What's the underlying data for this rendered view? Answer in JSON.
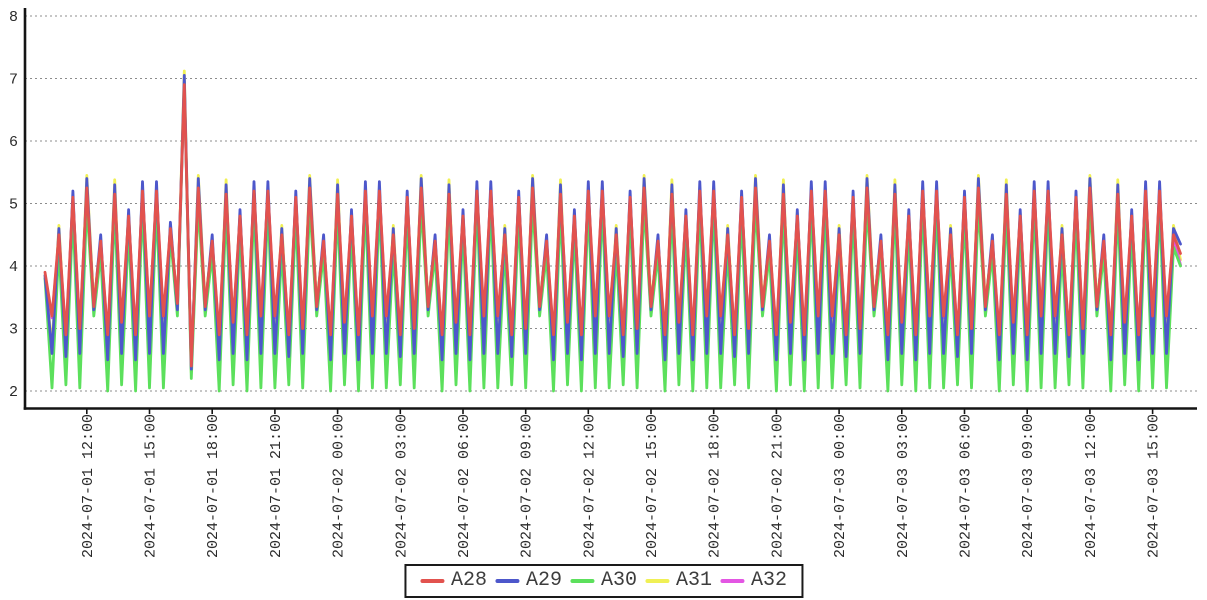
{
  "chart_data": {
    "type": "line",
    "title": "",
    "grid": {
      "horizontal": true,
      "style": "dashed",
      "color": "#8c8c8c"
    },
    "legend": {
      "position": "bottom-center",
      "border_color": "#1a1a1a",
      "entries": [
        "A28",
        "A29",
        "A30",
        "A31",
        "A32"
      ]
    },
    "y_axis": {
      "ticks": [
        8,
        7,
        6,
        5,
        4,
        3,
        2
      ],
      "ylim": [
        2,
        8
      ]
    },
    "x_axis": {
      "label_rotation_deg": 90,
      "tick_labels": [
        "2024-07-01 12:00",
        "2024-07-01 15:00",
        "2024-07-01 18:00",
        "2024-07-01 21:00",
        "2024-07-02 00:00",
        "2024-07-02 03:00",
        "2024-07-02 06:00",
        "2024-07-02 09:00",
        "2024-07-02 12:00",
        "2024-07-02 15:00",
        "2024-07-02 18:00",
        "2024-07-02 21:00",
        "2024-07-03 00:00",
        "2024-07-03 03:00",
        "2024-07-03 06:00",
        "2024-07-03 09:00",
        "2024-07-03 12:00",
        "2024-07-03 15:00"
      ],
      "tick_indices": [
        6,
        15,
        24,
        33,
        42,
        51,
        60,
        69,
        78,
        87,
        96,
        105,
        114,
        123,
        132,
        141,
        150,
        159
      ]
    },
    "draw_order": [
      "A31",
      "A32",
      "A30",
      "A29",
      "A28"
    ],
    "series": [
      {
        "name": "A28",
        "color": "#e2524e",
        "values": [
          3.9,
          3.2,
          4.5,
          2.9,
          5.1,
          3.0,
          5.25,
          3.35,
          4.4,
          2.9,
          5.15,
          3.1,
          4.8,
          2.9,
          5.2,
          3.2,
          5.2,
          3.2,
          4.6,
          3.4,
          6.9,
          2.4,
          5.25,
          3.35,
          4.4,
          2.9,
          5.15,
          3.1,
          4.8,
          2.9,
          5.2,
          3.2,
          5.2,
          3.2,
          4.5,
          2.9,
          5.1,
          3.0,
          5.25,
          3.35,
          4.4,
          2.9,
          5.15,
          3.1,
          4.8,
          2.9,
          5.2,
          3.2,
          5.2,
          3.2,
          4.5,
          2.9,
          5.1,
          3.0,
          5.25,
          3.35,
          4.4,
          2.9,
          5.15,
          3.1,
          4.8,
          2.9,
          5.2,
          3.2,
          5.2,
          3.2,
          4.5,
          2.9,
          5.1,
          3.0,
          5.25,
          3.35,
          4.4,
          2.9,
          5.15,
          3.1,
          4.8,
          2.9,
          5.2,
          3.2,
          5.2,
          3.2,
          4.5,
          2.9,
          5.1,
          3.0,
          5.25,
          3.35,
          4.4,
          2.9,
          5.15,
          3.1,
          4.8,
          2.9,
          5.2,
          3.2,
          5.2,
          3.2,
          4.5,
          2.9,
          5.1,
          3.0,
          5.25,
          3.35,
          4.4,
          2.9,
          5.15,
          3.1,
          4.8,
          2.9,
          5.2,
          3.2,
          5.2,
          3.2,
          4.5,
          2.9,
          5.1,
          3.0,
          5.25,
          3.35,
          4.4,
          2.9,
          5.15,
          3.1,
          4.8,
          2.9,
          5.2,
          3.2,
          5.2,
          3.2,
          4.5,
          2.9,
          5.1,
          3.0,
          5.25,
          3.35,
          4.4,
          2.9,
          5.15,
          3.1,
          4.8,
          2.9,
          5.2,
          3.2,
          5.2,
          3.2,
          4.5,
          2.9,
          5.1,
          3.0,
          5.25,
          3.35,
          4.4,
          2.9,
          5.15,
          3.1,
          4.8,
          2.9,
          5.2,
          3.2,
          5.2,
          3.2,
          4.5,
          4.2
        ]
      },
      {
        "name": "A29",
        "color": "#4d57cb",
        "values": [
          3.85,
          2.6,
          4.6,
          2.55,
          5.2,
          2.6,
          5.4,
          3.3,
          4.5,
          2.5,
          5.3,
          2.6,
          4.9,
          2.5,
          5.35,
          2.6,
          5.35,
          2.6,
          4.7,
          3.3,
          7.05,
          2.35,
          5.4,
          3.3,
          4.5,
          2.5,
          5.3,
          2.6,
          4.9,
          2.5,
          5.35,
          2.6,
          5.35,
          2.6,
          4.6,
          2.55,
          5.2,
          2.6,
          5.4,
          3.3,
          4.5,
          2.5,
          5.3,
          2.6,
          4.9,
          2.5,
          5.35,
          2.6,
          5.35,
          2.6,
          4.6,
          2.55,
          5.2,
          2.6,
          5.4,
          3.3,
          4.5,
          2.5,
          5.3,
          2.6,
          4.9,
          2.5,
          5.35,
          2.6,
          5.35,
          2.6,
          4.6,
          2.55,
          5.2,
          2.6,
          5.4,
          3.3,
          4.5,
          2.5,
          5.3,
          2.6,
          4.9,
          2.5,
          5.35,
          2.6,
          5.35,
          2.6,
          4.6,
          2.55,
          5.2,
          2.6,
          5.4,
          3.3,
          4.5,
          2.5,
          5.3,
          2.6,
          4.9,
          2.5,
          5.35,
          2.6,
          5.35,
          2.6,
          4.6,
          2.55,
          5.2,
          2.6,
          5.4,
          3.3,
          4.5,
          2.5,
          5.3,
          2.6,
          4.9,
          2.5,
          5.35,
          2.6,
          5.35,
          2.6,
          4.6,
          2.55,
          5.2,
          2.6,
          5.4,
          3.3,
          4.5,
          2.5,
          5.3,
          2.6,
          4.9,
          2.5,
          5.35,
          2.6,
          5.35,
          2.6,
          4.6,
          2.55,
          5.2,
          2.6,
          5.4,
          3.3,
          4.5,
          2.5,
          5.3,
          2.6,
          4.9,
          2.5,
          5.35,
          2.6,
          5.35,
          2.6,
          4.6,
          2.55,
          5.2,
          2.6,
          5.4,
          3.3,
          4.5,
          2.5,
          5.3,
          2.6,
          4.9,
          2.5,
          5.35,
          2.6,
          5.35,
          2.6,
          4.6,
          4.35
        ]
      },
      {
        "name": "A30",
        "color": "#5ce05c",
        "values": [
          3.8,
          2.05,
          4.3,
          2.1,
          4.85,
          2.05,
          5.0,
          3.2,
          4.2,
          2.0,
          4.95,
          2.1,
          4.6,
          2.0,
          5.0,
          2.05,
          5.0,
          2.05,
          4.5,
          3.2,
          6.95,
          2.2,
          5.0,
          3.2,
          4.2,
          2.0,
          4.95,
          2.1,
          4.6,
          2.0,
          5.0,
          2.05,
          5.0,
          2.05,
          4.3,
          2.1,
          4.85,
          2.05,
          5.0,
          3.2,
          4.2,
          2.0,
          4.95,
          2.1,
          4.6,
          2.0,
          5.0,
          2.05,
          5.0,
          2.05,
          4.3,
          2.1,
          4.85,
          2.05,
          5.0,
          3.2,
          4.2,
          2.0,
          4.95,
          2.1,
          4.6,
          2.0,
          5.0,
          2.05,
          5.0,
          2.05,
          4.3,
          2.1,
          4.85,
          2.05,
          5.0,
          3.2,
          4.2,
          2.0,
          4.95,
          2.1,
          4.6,
          2.0,
          5.0,
          2.05,
          5.0,
          2.05,
          4.3,
          2.1,
          4.85,
          2.05,
          5.0,
          3.2,
          4.2,
          2.0,
          4.95,
          2.1,
          4.6,
          2.0,
          5.0,
          2.05,
          5.0,
          2.05,
          4.3,
          2.1,
          4.85,
          2.05,
          5.0,
          3.2,
          4.2,
          2.0,
          4.95,
          2.1,
          4.6,
          2.0,
          5.0,
          2.05,
          5.0,
          2.05,
          4.3,
          2.1,
          4.85,
          2.05,
          5.0,
          3.2,
          4.2,
          2.0,
          4.95,
          2.1,
          4.6,
          2.0,
          5.0,
          2.05,
          5.0,
          2.05,
          4.3,
          2.1,
          4.85,
          2.05,
          5.0,
          3.2,
          4.2,
          2.0,
          4.95,
          2.1,
          4.6,
          2.0,
          5.0,
          2.05,
          5.0,
          2.05,
          4.3,
          2.1,
          4.85,
          2.05,
          5.0,
          3.2,
          4.2,
          2.0,
          4.95,
          2.1,
          4.6,
          2.0,
          5.0,
          2.05,
          5.0,
          2.05,
          4.3,
          4.0
        ]
      },
      {
        "name": "A31",
        "color": "#f0f055",
        "values": [
          3.85,
          2.7,
          4.65,
          2.7,
          5.1,
          2.75,
          5.45,
          3.4,
          4.4,
          2.6,
          5.38,
          2.7,
          4.85,
          2.6,
          5.25,
          2.7,
          5.25,
          2.7,
          4.65,
          3.35,
          7.12,
          2.3,
          5.45,
          3.4,
          4.4,
          2.6,
          5.38,
          2.7,
          4.85,
          2.6,
          5.25,
          2.7,
          5.25,
          2.7,
          4.65,
          2.7,
          5.1,
          2.75,
          5.45,
          3.4,
          4.4,
          2.6,
          5.38,
          2.7,
          4.85,
          2.6,
          5.25,
          2.7,
          5.25,
          2.7,
          4.65,
          2.7,
          5.1,
          2.75,
          5.45,
          3.4,
          4.4,
          2.6,
          5.38,
          2.7,
          4.85,
          2.6,
          5.25,
          2.7,
          5.25,
          2.7,
          4.65,
          2.7,
          5.1,
          2.75,
          5.45,
          3.4,
          4.4,
          2.6,
          5.38,
          2.7,
          4.85,
          2.6,
          5.25,
          2.7,
          5.25,
          2.7,
          4.65,
          2.7,
          5.1,
          2.75,
          5.45,
          3.4,
          4.4,
          2.6,
          5.38,
          2.7,
          4.85,
          2.6,
          5.25,
          2.7,
          5.25,
          2.7,
          4.65,
          2.7,
          5.1,
          2.75,
          5.45,
          3.4,
          4.4,
          2.6,
          5.38,
          2.7,
          4.85,
          2.6,
          5.25,
          2.7,
          5.25,
          2.7,
          4.65,
          2.7,
          5.1,
          2.75,
          5.45,
          3.4,
          4.4,
          2.6,
          5.38,
          2.7,
          4.85,
          2.6,
          5.25,
          2.7,
          5.25,
          2.7,
          4.65,
          2.7,
          5.1,
          2.75,
          5.45,
          3.4,
          4.4,
          2.6,
          5.38,
          2.7,
          4.85,
          2.6,
          5.25,
          2.7,
          5.25,
          2.7,
          4.65,
          2.7,
          5.1,
          2.75,
          5.45,
          3.4,
          4.4,
          2.6,
          5.38,
          2.7,
          4.85,
          2.6,
          5.25,
          2.7,
          5.25,
          2.7,
          4.65,
          4.1
        ]
      },
      {
        "name": "A32",
        "color": "#e356e3",
        "values": [
          3.8,
          3.17,
          4.45,
          2.87,
          5.05,
          2.97,
          5.2,
          3.3,
          4.35,
          2.87,
          5.1,
          3.07,
          4.75,
          2.87,
          5.15,
          3.17,
          5.15,
          3.17,
          4.55,
          3.37,
          6.85,
          2.37,
          5.2,
          3.3,
          4.35,
          2.87,
          5.1,
          3.07,
          4.75,
          2.87,
          5.15,
          3.17,
          5.15,
          3.17,
          4.45,
          2.87,
          5.05,
          2.97,
          5.2,
          3.3,
          4.35,
          2.87,
          5.1,
          3.07,
          4.75,
          2.87,
          5.15,
          3.17,
          5.15,
          3.17,
          4.45,
          2.87,
          5.05,
          2.97,
          5.2,
          3.3,
          4.35,
          2.87,
          5.1,
          3.07,
          4.75,
          2.87,
          5.15,
          3.17,
          5.15,
          3.17,
          4.45,
          2.87,
          5.05,
          2.97,
          5.2,
          3.3,
          4.35,
          2.87,
          5.1,
          3.07,
          4.75,
          2.87,
          5.15,
          3.17,
          5.15,
          3.17,
          4.45,
          2.87,
          5.05,
          2.97,
          5.2,
          3.3,
          4.35,
          2.87,
          5.1,
          3.07,
          4.75,
          2.87,
          5.15,
          3.17,
          5.15,
          3.17,
          4.45,
          2.87,
          5.05,
          2.97,
          5.2,
          3.3,
          4.35,
          2.87,
          5.1,
          3.07,
          4.75,
          2.87,
          5.15,
          3.17,
          5.15,
          3.17,
          4.45,
          2.87,
          5.05,
          2.97,
          5.2,
          3.3,
          4.35,
          2.87,
          5.1,
          3.07,
          4.75,
          2.87,
          5.15,
          3.17,
          5.15,
          3.17,
          4.45,
          2.87,
          5.05,
          2.97,
          5.2,
          3.3,
          4.35,
          2.87,
          5.1,
          3.07,
          4.75,
          2.87,
          5.15,
          3.17,
          5.15,
          3.17,
          4.45,
          2.87,
          5.05,
          2.97,
          5.2,
          3.3,
          4.35,
          2.87,
          5.1,
          3.07,
          4.75,
          2.87,
          5.15,
          3.17,
          5.15,
          3.17,
          4.45,
          4.02
        ]
      }
    ]
  },
  "colors": {
    "background": "#ffffff",
    "axis": "#141414",
    "tick_label": "#2b2b2b",
    "gridline": "#8c8c8c"
  }
}
